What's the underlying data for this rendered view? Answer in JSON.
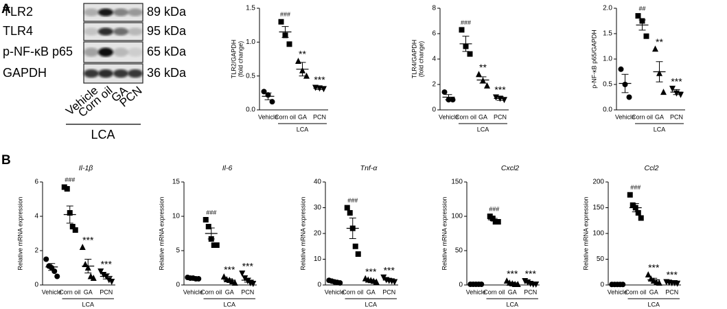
{
  "panels": {
    "a": "A",
    "b": "B"
  },
  "blot": {
    "proteins": [
      "TLR2",
      "TLR4",
      "p-NF-κB  p65",
      "GAPDH"
    ],
    "sizes": [
      "89 kDa",
      "95 kDa",
      "65 kDa",
      "36 kDa"
    ],
    "lanes": [
      "Vehicle",
      "Corn oil",
      "GA",
      "PCN"
    ],
    "group": "LCA"
  },
  "chart_data": [
    {
      "type": "scatter",
      "ylabel": [
        "TLR2/GAPDH",
        "(fold change)"
      ],
      "categories": [
        "Vehicle",
        "Corn oil",
        "GA",
        "PCN"
      ],
      "group": "LCA",
      "markers": [
        "circle",
        "square",
        "triangle",
        "triangle-down"
      ],
      "color": "#000000",
      "ylim": [
        0,
        1.5
      ],
      "yticks": [
        {
          "value": 0,
          "label": "0.0"
        },
        0.5,
        {
          "value": 1,
          "label": "1.0"
        },
        1.5
      ],
      "points": [
        [
          0.27,
          0.22,
          0.12
        ],
        [
          1.3,
          1.1,
          0.97
        ],
        [
          0.72,
          0.58,
          0.5
        ],
        [
          0.33,
          0.32,
          0.31
        ]
      ],
      "means": [
        0.2,
        1.15,
        0.6,
        0.32
      ],
      "sems": [
        0.05,
        0.08,
        0.1,
        0.02
      ],
      "annotations": [
        null,
        "###",
        "**",
        "***"
      ]
    },
    {
      "type": "scatter",
      "ylabel": [
        "TLR4/GAPDH",
        "(fold change)"
      ],
      "categories": [
        "Vehicle",
        "Corn oil",
        "GA",
        "PCN"
      ],
      "group": "LCA",
      "markers": [
        "circle",
        "square",
        "triangle",
        "triangle-down"
      ],
      "color": "#000000",
      "ylim": [
        0,
        8
      ],
      "yticks": [
        0,
        2,
        4,
        6,
        8
      ],
      "points": [
        [
          1.4,
          0.8,
          0.8
        ],
        [
          6.3,
          5.0,
          4.4
        ],
        [
          2.8,
          2.3,
          1.9
        ],
        [
          1.0,
          0.9,
          0.8
        ]
      ],
      "means": [
        1.0,
        5.2,
        2.35,
        0.9
      ],
      "sems": [
        0.2,
        0.6,
        0.25,
        0.15
      ],
      "annotations": [
        null,
        "###",
        "**",
        "***"
      ]
    },
    {
      "type": "scatter",
      "ylabel": [
        "p-NF-κB  p65/GAPDH"
      ],
      "categories": [
        "Vehicle",
        "Corn oil",
        "GA",
        "PCN"
      ],
      "group": "LCA",
      "markers": [
        "circle",
        "square",
        "triangle",
        "triangle-down"
      ],
      "color": "#000000",
      "ylim": [
        0,
        2
      ],
      "yticks": [
        {
          "value": 0,
          "label": "0.0"
        },
        0.5,
        {
          "value": 1,
          "label": "1.0"
        },
        1.5,
        {
          "value": 2,
          "label": "2.0"
        }
      ],
      "points": [
        [
          0.8,
          0.5,
          0.25
        ],
        [
          1.85,
          1.75,
          1.45
        ],
        [
          1.2,
          0.72,
          0.35
        ],
        [
          0.42,
          0.33,
          0.3
        ]
      ],
      "means": [
        0.52,
        1.67,
        0.75,
        0.35
      ],
      "sems": [
        0.18,
        0.1,
        0.2,
        0.05
      ],
      "annotations": [
        null,
        "##",
        "**",
        "***"
      ]
    },
    {
      "type": "scatter",
      "title": "Il-1β",
      "ylabel": [
        "Relative mRNA expression"
      ],
      "categories": [
        "Vehicle",
        "Corn oil",
        "GA",
        "PCN"
      ],
      "group": "LCA",
      "markers": [
        "circle",
        "square",
        "triangle",
        "triangle-down"
      ],
      "color": "#000000",
      "ylim": [
        0,
        6
      ],
      "yticks": [
        0,
        2,
        4,
        6
      ],
      "points": [
        [
          1.5,
          1.1,
          1.0,
          0.8,
          0.5
        ],
        [
          5.7,
          5.6,
          4.2,
          3.4,
          3.2
        ],
        [
          2.2,
          1.2,
          1.0,
          0.5,
          0.4
        ],
        [
          0.8,
          0.6,
          0.5,
          0.3,
          0.2
        ]
      ],
      "means": [
        1.05,
        4.1,
        1.1,
        0.5
      ],
      "sems": [
        0.2,
        0.5,
        0.4,
        0.15
      ],
      "annotations": [
        null,
        "###",
        "***",
        "***"
      ]
    },
    {
      "type": "scatter",
      "title": "Il-6",
      "ylabel": [
        "Relative mRNA expression"
      ],
      "categories": [
        "Vehicle",
        "Corn oil",
        "GA",
        "PCN"
      ],
      "group": "LCA",
      "markers": [
        "circle",
        "square",
        "triangle",
        "triangle-down"
      ],
      "color": "#000000",
      "ylim": [
        0,
        15
      ],
      "yticks": [
        0,
        5,
        10,
        15
      ],
      "points": [
        [
          1.1,
          1.0,
          1.0,
          0.9,
          0.9
        ],
        [
          9.5,
          8.5,
          6.7,
          5.8,
          5.8
        ],
        [
          1.2,
          0.8,
          0.7,
          0.5,
          0.3
        ],
        [
          1.7,
          1.0,
          0.6,
          0.3,
          0.2
        ]
      ],
      "means": [
        1.0,
        7.5,
        0.7,
        0.7
      ],
      "sems": [
        0.05,
        0.8,
        0.2,
        0.3
      ],
      "annotations": [
        null,
        "###",
        "***",
        "***"
      ]
    },
    {
      "type": "scatter",
      "title": "Tnf-α",
      "ylabel": [
        "Relative mRNA expression"
      ],
      "categories": [
        "Vehicle",
        "Corn oil",
        "GA",
        "PCN"
      ],
      "group": "LCA",
      "markers": [
        "circle",
        "square",
        "triangle",
        "triangle-down"
      ],
      "color": "#000000",
      "ylim": [
        0,
        40
      ],
      "yticks": [
        0,
        10,
        20,
        30,
        40
      ],
      "points": [
        [
          1.8,
          1.5,
          1.2,
          1.0,
          0.8
        ],
        [
          30,
          28,
          22,
          15,
          12
        ],
        [
          2.5,
          2,
          1.8,
          1.5,
          1.2
        ],
        [
          3,
          2,
          1.7,
          1.5,
          1.2
        ]
      ],
      "means": [
        1.2,
        22,
        1.8,
        1.9
      ],
      "sems": [
        0.2,
        4,
        0.3,
        0.5
      ],
      "annotations": [
        null,
        "###",
        "***",
        "***"
      ]
    },
    {
      "type": "scatter",
      "title": "Cxcl2",
      "ylabel": [
        "Relative mRNA expression"
      ],
      "categories": [
        "Vehicle",
        "Corn oil",
        "GA",
        "PCN"
      ],
      "group": "LCA",
      "markers": [
        "circle",
        "square",
        "triangle",
        "triangle-down"
      ],
      "color": "#000000",
      "ylim": [
        0,
        150
      ],
      "yticks": [
        0,
        50,
        100,
        150
      ],
      "points": [
        [
          1,
          1,
          1,
          1,
          1
        ],
        [
          100,
          97,
          92,
          92
        ],
        [
          6,
          3,
          2,
          1,
          1
        ],
        [
          6,
          4,
          2,
          1,
          1
        ]
      ],
      "means": [
        1,
        95,
        3,
        3
      ],
      "sems": [
        0.1,
        2,
        1,
        1
      ],
      "annotations": [
        null,
        "###",
        "***",
        "***"
      ]
    },
    {
      "type": "scatter",
      "title": "Ccl2",
      "ylabel": [
        "Relative mRNA expression"
      ],
      "categories": [
        "Vehicle",
        "Corn oil",
        "GA",
        "PCN"
      ],
      "group": "LCA",
      "markers": [
        "circle",
        "square",
        "triangle",
        "triangle-down"
      ],
      "color": "#000000",
      "ylim": [
        0,
        200
      ],
      "yticks": [
        0,
        50,
        100,
        150,
        200
      ],
      "points": [
        [
          1,
          1,
          1,
          1,
          1
        ],
        [
          175,
          155,
          150,
          140,
          130
        ],
        [
          20,
          12,
          8,
          5,
          4
        ],
        [
          6,
          5,
          4,
          4,
          3
        ]
      ],
      "means": [
        1,
        150,
        10,
        4.5
      ],
      "sems": [
        0.2,
        8,
        3,
        0.5
      ],
      "annotations": [
        null,
        "###",
        "***",
        "***"
      ]
    }
  ]
}
